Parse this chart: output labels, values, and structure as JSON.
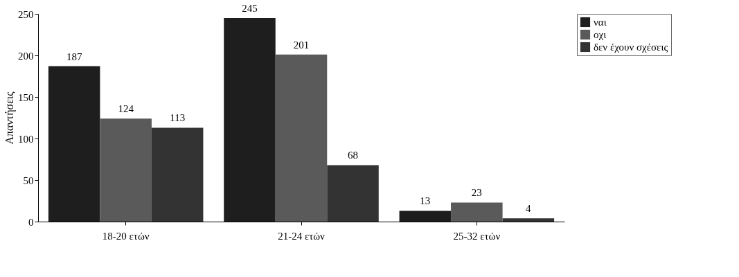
{
  "chart_data": {
    "type": "bar",
    "ylabel": "Απαντήσεις",
    "categories": [
      "18-20 ετών",
      "21-24 ετών",
      "25-32 ετών"
    ],
    "series": [
      {
        "name": "ναι",
        "color": "#1e1e1e",
        "values": [
          187,
          245,
          13
        ]
      },
      {
        "name": "οχι",
        "color": "#5a5a5a",
        "values": [
          124,
          201,
          23
        ]
      },
      {
        "name": "δεν έχουν σχέσεις",
        "color": "#333333",
        "values": [
          113,
          68,
          4
        ]
      }
    ],
    "ylim": [
      0,
      250
    ],
    "yticks": [
      0,
      50,
      100,
      150,
      200,
      250
    ],
    "grid": false,
    "legend": "right",
    "data_labels": true
  }
}
